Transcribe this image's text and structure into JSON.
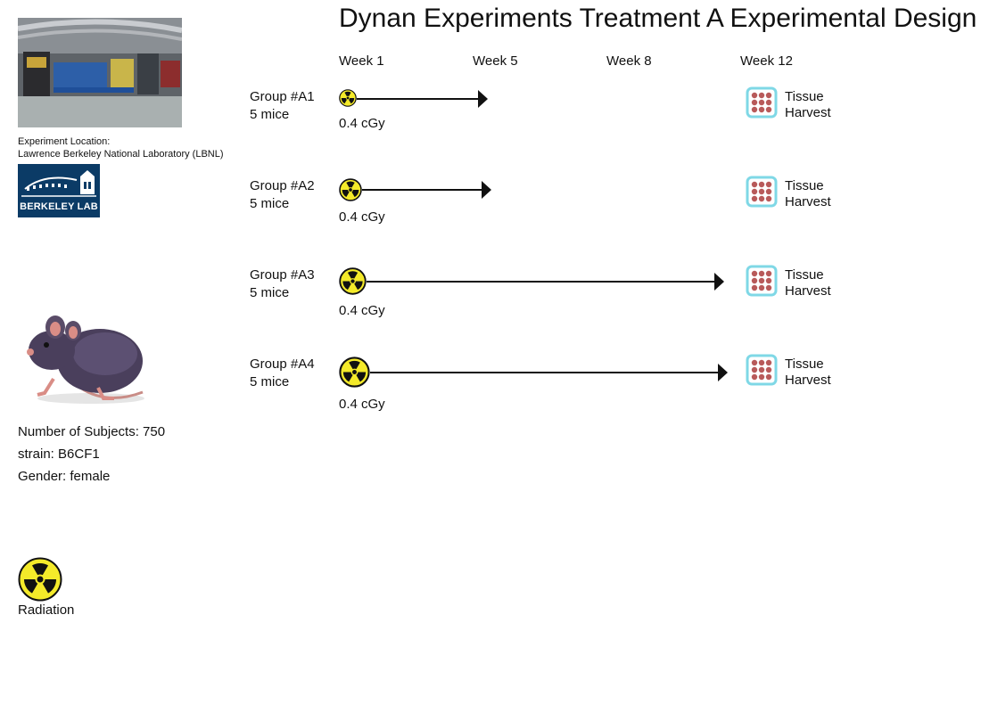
{
  "title": "Dynan Experiments Treatment A Experimental Design",
  "weeks": [
    "Week 1",
    "Week 5",
    "Week 8",
    "Week 12"
  ],
  "location": {
    "label": "Experiment Location:",
    "name": "Lawrence Berkeley National Laboratory (LBNL)",
    "logo_text": "BERKELEY LAB"
  },
  "subjects": {
    "count": "Number of Subjects: 750",
    "strain": "strain: B6CF1",
    "gender": "Gender: female"
  },
  "legend": {
    "radiation_label": "Radiation",
    "icon": "radiation-icon"
  },
  "groups": [
    {
      "name": "Group #A1",
      "size": "5 mice",
      "dose": "0.4 cGy",
      "harvest": [
        "Tissue",
        "Harvest"
      ]
    },
    {
      "name": "Group #A2",
      "size": "5 mice",
      "dose": "0.4 cGy",
      "harvest": [
        "Tissue",
        "Harvest"
      ]
    },
    {
      "name": "Group #A3",
      "size": "5 mice",
      "dose": "0.4 cGy",
      "harvest": [
        "Tissue",
        "Harvest"
      ]
    },
    {
      "name": "Group #A4",
      "size": "5 mice",
      "dose": "0.4 cGy",
      "harvest": [
        "Tissue",
        "Harvest"
      ]
    }
  ],
  "colors": {
    "radiation_fill": "#f4ea2a",
    "harvest_border": "#7fd8e6",
    "tissue_dots": "#b85a5a",
    "logo_bg": "#0b3b66"
  }
}
